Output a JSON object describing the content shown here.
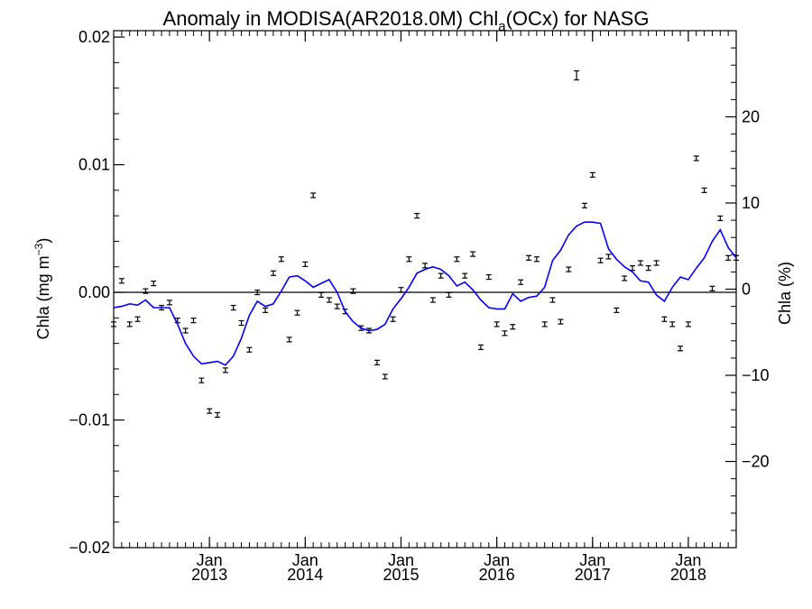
{
  "chart_data": {
    "type": "line",
    "title": "Anomaly in MODISA(AR2018.0M) Chl",
    "title_subscript": "a",
    "title_suffix": "(OCx) for NASG",
    "ylabel": "Chla (mg m",
    "ylabel_superscript": "−3",
    "ylabel_suffix": ")",
    "y2label": "Chla (%)",
    "x_range": [
      "2012-01",
      "2018-07"
    ],
    "ylim": [
      -0.02,
      0.0205
    ],
    "y2lim": [
      -30,
      30
    ],
    "y_ticks": [
      {
        "value": 0.02,
        "label": "0.02"
      },
      {
        "value": 0.01,
        "label": "0.01"
      },
      {
        "value": 0.0,
        "label": "0.00"
      },
      {
        "value": -0.01,
        "label": "−0.01"
      },
      {
        "value": -0.02,
        "label": "−0.02"
      }
    ],
    "y2_ticks": [
      {
        "value": 20,
        "label": "20"
      },
      {
        "value": 10,
        "label": "10"
      },
      {
        "value": 0,
        "label": "0"
      },
      {
        "value": -10,
        "label": "−10"
      },
      {
        "value": -20,
        "label": "−20"
      }
    ],
    "x_ticks": [
      {
        "date": "2013-01",
        "month": "Jan",
        "year": "2013"
      },
      {
        "date": "2014-01",
        "month": "Jan",
        "year": "2014"
      },
      {
        "date": "2015-01",
        "month": "Jan",
        "year": "2015"
      },
      {
        "date": "2016-01",
        "month": "Jan",
        "year": "2016"
      },
      {
        "date": "2017-01",
        "month": "Jan",
        "year": "2017"
      },
      {
        "date": "2018-01",
        "month": "Jan",
        "year": "2018"
      }
    ],
    "zero_line": true,
    "colors": {
      "line": "#0000ff",
      "points": "#000000",
      "axes": "#000000"
    },
    "series": [
      {
        "type": "errorbar",
        "x": [
          "2012-01",
          "2012-02",
          "2012-03",
          "2012-04",
          "2012-05",
          "2012-06",
          "2012-07",
          "2012-08",
          "2012-09",
          "2012-10",
          "2012-11",
          "2012-12",
          "2013-01",
          "2013-02",
          "2013-03",
          "2013-04",
          "2013-05",
          "2013-06",
          "2013-07",
          "2013-08",
          "2013-09",
          "2013-10",
          "2013-11",
          "2013-12",
          "2014-01",
          "2014-02",
          "2014-03",
          "2014-04",
          "2014-05",
          "2014-06",
          "2014-07",
          "2014-08",
          "2014-09",
          "2014-10",
          "2014-11",
          "2014-12",
          "2015-01",
          "2015-02",
          "2015-03",
          "2015-04",
          "2015-05",
          "2015-06",
          "2015-07",
          "2015-08",
          "2015-09",
          "2015-10",
          "2015-11",
          "2015-12",
          "2016-01",
          "2016-02",
          "2016-03",
          "2016-04",
          "2016-05",
          "2016-06",
          "2016-07",
          "2016-08",
          "2016-09",
          "2016-10",
          "2016-11",
          "2016-12",
          "2017-01",
          "2017-02",
          "2017-03",
          "2017-04",
          "2017-05",
          "2017-06",
          "2017-07",
          "2017-08",
          "2017-09",
          "2017-10",
          "2017-11",
          "2017-12",
          "2018-01",
          "2018-02",
          "2018-03",
          "2018-04",
          "2018-05",
          "2018-06",
          "2018-07"
        ],
        "y": [
          -0.0025,
          0.0009,
          -0.0025,
          -0.0021,
          0.0001,
          0.0007,
          -0.0012,
          -0.0008,
          -0.0022,
          -0.003,
          -0.0022,
          -0.0069,
          -0.0093,
          -0.0096,
          -0.0061,
          -0.0012,
          -0.0024,
          -0.0045,
          0.0,
          -0.0014,
          0.0015,
          0.0026,
          -0.0037,
          -0.0016,
          0.0022,
          0.0076,
          -0.0002,
          -0.0006,
          -0.0011,
          -0.0015,
          0.0001,
          -0.0028,
          -0.003,
          -0.0055,
          -0.0066,
          -0.0021,
          0.0002,
          0.0026,
          0.006,
          0.0021,
          -0.0006,
          0.0013,
          -0.0002,
          0.0026,
          0.0013,
          0.003,
          -0.0043,
          0.0012,
          -0.0025,
          -0.0032,
          -0.0027,
          0.0008,
          0.0027,
          0.0026,
          -0.0025,
          -0.0006,
          -0.0023,
          0.0018,
          0.017,
          0.0068,
          0.0092,
          0.0025,
          0.0028,
          -0.0014,
          0.0011,
          0.0019,
          0.0023,
          0.0019,
          0.0023,
          -0.0021,
          -0.0025,
          -0.0044,
          -0.0025,
          0.0105,
          0.008,
          0.0003,
          0.0058,
          0.0027,
          0.0027
        ]
      },
      {
        "type": "line",
        "x": [
          "2012-01",
          "2012-02",
          "2012-03",
          "2012-04",
          "2012-05",
          "2012-06",
          "2012-07",
          "2012-08",
          "2012-09",
          "2012-10",
          "2012-11",
          "2012-12",
          "2013-01",
          "2013-02",
          "2013-03",
          "2013-04",
          "2013-05",
          "2013-06",
          "2013-07",
          "2013-08",
          "2013-09",
          "2013-10",
          "2013-11",
          "2013-12",
          "2014-01",
          "2014-02",
          "2014-03",
          "2014-04",
          "2014-05",
          "2014-06",
          "2014-07",
          "2014-08",
          "2014-09",
          "2014-10",
          "2014-11",
          "2014-12",
          "2015-01",
          "2015-02",
          "2015-03",
          "2015-04",
          "2015-05",
          "2015-06",
          "2015-07",
          "2015-08",
          "2015-09",
          "2015-10",
          "2015-11",
          "2015-12",
          "2016-01",
          "2016-02",
          "2016-03",
          "2016-04",
          "2016-05",
          "2016-06",
          "2016-07",
          "2016-08",
          "2016-09",
          "2016-10",
          "2016-11",
          "2016-12",
          "2017-01",
          "2017-02",
          "2017-03",
          "2017-04",
          "2017-05",
          "2017-06",
          "2017-07",
          "2017-08",
          "2017-09",
          "2017-10",
          "2017-11",
          "2017-12",
          "2018-01",
          "2018-02",
          "2018-03",
          "2018-04",
          "2018-05",
          "2018-06",
          "2018-07"
        ],
        "y": [
          -0.0012,
          -0.0011,
          -0.0009,
          -0.001,
          -0.0006,
          -0.0012,
          -0.0012,
          -0.0012,
          -0.0025,
          -0.004,
          -0.005,
          -0.0056,
          -0.0055,
          -0.0054,
          -0.0057,
          -0.005,
          -0.0036,
          -0.0018,
          -0.0007,
          -0.0011,
          -0.0009,
          0.0001,
          0.0012,
          0.0013,
          0.0009,
          0.0004,
          0.0007,
          0.001,
          0.0,
          -0.0015,
          -0.0023,
          -0.0028,
          -0.003,
          -0.0029,
          -0.0025,
          -0.0013,
          -0.0005,
          0.0004,
          0.0015,
          0.0018,
          0.002,
          0.0018,
          0.0013,
          0.0005,
          0.0008,
          0.0002,
          -0.0006,
          -0.0012,
          -0.0013,
          -0.0013,
          -0.0001,
          -0.0007,
          -0.0004,
          -0.0003,
          0.0004,
          0.0025,
          0.0033,
          0.0045,
          0.0052,
          0.0055,
          0.0055,
          0.0054,
          0.0034,
          0.0026,
          0.002,
          0.0016,
          0.0009,
          0.0008,
          -0.0002,
          -0.0007,
          0.0004,
          0.0012,
          0.001,
          0.0019,
          0.0027,
          0.004,
          0.0049,
          0.0035,
          0.0027
        ]
      }
    ]
  }
}
